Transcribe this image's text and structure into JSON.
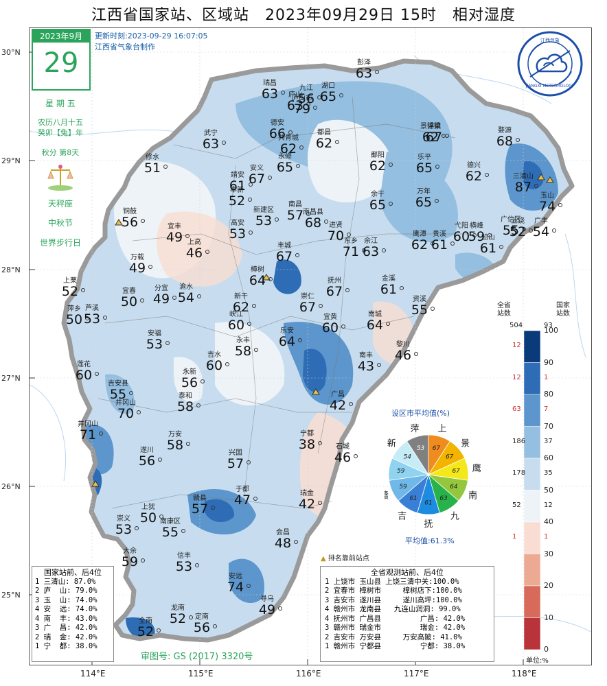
{
  "title": "江西省国家站、区域站　2023年09月29日 15时　相对湿度",
  "calendar": {
    "month": "2023年9月",
    "day": "29",
    "weekday": "星 期 五",
    "lunar1": "农历八月十五",
    "lunar2": "癸卯【兔】年",
    "term": "秋分 第8天",
    "zodiac": "天秤座",
    "festival1": "中秋节",
    "festival2": "世界步行日"
  },
  "update": {
    "line1": "更新时刻:2023-09-29 16:07:05",
    "line2": "江西省气象台制作"
  },
  "logo_text": "JIANGXI METEOROLOGY",
  "logo_top": "江西气象",
  "lat_labels": [
    "30°N",
    "29°N",
    "28°N",
    "27°N",
    "26°N",
    "25°N"
  ],
  "lon_labels": [
    "114°E",
    "115°E",
    "116°E",
    "117°E",
    "118°E"
  ],
  "stations": [
    {
      "name": "彭泽",
      "value": "63"
    },
    {
      "name": "瑞昌",
      "value": "63"
    },
    {
      "name": "九江",
      "value": "56"
    },
    {
      "name": "湖口",
      "value": "65"
    },
    {
      "name": "庐山",
      "value": "63"
    },
    {
      "name": "庐山市",
      "value": "79"
    },
    {
      "name": "德安",
      "value": "66"
    },
    {
      "name": "共青城",
      "value": "62"
    },
    {
      "name": "都昌",
      "value": "62"
    },
    {
      "name": "武宁",
      "value": "63"
    },
    {
      "name": "永修",
      "value": "65"
    },
    {
      "name": "浮梁",
      "value": "67"
    },
    {
      "name": "景德镇",
      "value": "62"
    },
    {
      "name": "婺源",
      "value": "68"
    },
    {
      "name": "修水",
      "value": "51"
    },
    {
      "name": "鄱阳",
      "value": "62"
    },
    {
      "name": "乐平",
      "value": "65"
    },
    {
      "name": "德兴",
      "value": "62"
    },
    {
      "name": "三清山",
      "value": "87"
    },
    {
      "name": "玉山",
      "value": "74"
    },
    {
      "name": "靖安",
      "value": "61"
    },
    {
      "name": "安义",
      "value": "67"
    },
    {
      "name": "奉新",
      "value": "52"
    },
    {
      "name": "新建区",
      "value": "53"
    },
    {
      "name": "南昌",
      "value": "57"
    },
    {
      "name": "南昌县",
      "value": "68"
    },
    {
      "name": "余干",
      "value": "65"
    },
    {
      "name": "万年",
      "value": "65"
    },
    {
      "name": "铜鼓",
      "value": "56"
    },
    {
      "name": "宜丰",
      "value": "49"
    },
    {
      "name": "高安",
      "value": "53"
    },
    {
      "name": "进贤",
      "value": "70"
    },
    {
      "name": "广信区",
      "value": "55"
    },
    {
      "name": "上饶",
      "value": "52"
    },
    {
      "name": "广丰",
      "value": "54"
    },
    {
      "name": "上高",
      "value": "46"
    },
    {
      "name": "丰城",
      "value": "67"
    },
    {
      "name": "东乡",
      "value": "71"
    },
    {
      "name": "余江",
      "value": "63"
    },
    {
      "name": "鹰潭",
      "value": "62"
    },
    {
      "name": "贵溪",
      "value": "61"
    },
    {
      "name": "弋阳",
      "value": "60"
    },
    {
      "name": "横峰",
      "value": "59"
    },
    {
      "name": "铅山",
      "value": "61"
    },
    {
      "name": "万载",
      "value": "49"
    },
    {
      "name": "樟树",
      "value": "64"
    },
    {
      "name": "抚州",
      "value": "67"
    },
    {
      "name": "金溪",
      "value": "61"
    },
    {
      "name": "上栗",
      "value": "52"
    },
    {
      "name": "宜春",
      "value": "50"
    },
    {
      "name": "分宜",
      "value": "49"
    },
    {
      "name": "渝水",
      "value": "54"
    },
    {
      "name": "新干",
      "value": "62"
    },
    {
      "name": "崇仁",
      "value": "67"
    },
    {
      "name": "资溪",
      "value": "55"
    },
    {
      "name": "萍乡",
      "value": "50"
    },
    {
      "name": "芦溪",
      "value": "53"
    },
    {
      "name": "峡江",
      "value": "60"
    },
    {
      "name": "宜黄",
      "value": "60"
    },
    {
      "name": "南城",
      "value": "64"
    },
    {
      "name": "乐安",
      "value": "64"
    },
    {
      "name": "安福",
      "value": "53"
    },
    {
      "name": "永丰",
      "value": "58"
    },
    {
      "name": "黎川",
      "value": "46"
    },
    {
      "name": "吉水",
      "value": "60"
    },
    {
      "name": "南丰",
      "value": "43"
    },
    {
      "name": "莲花",
      "value": "60"
    },
    {
      "name": "吉安县",
      "value": "55"
    },
    {
      "name": "永新",
      "value": "56"
    },
    {
      "name": "泰和",
      "value": "58"
    },
    {
      "name": "井冈山",
      "value": "70"
    },
    {
      "name": "广昌",
      "value": "42"
    },
    {
      "name": "井冈山2",
      "value": "71"
    },
    {
      "name": "万安",
      "value": "58"
    },
    {
      "name": "宁都",
      "value": "38"
    },
    {
      "name": "遂川",
      "value": "56"
    },
    {
      "name": "兴国",
      "value": "57"
    },
    {
      "name": "石城",
      "value": "46"
    },
    {
      "name": "赣县",
      "value": "57"
    },
    {
      "name": "于都",
      "value": "47"
    },
    {
      "name": "上犹",
      "value": "50"
    },
    {
      "name": "瑞金",
      "value": "42"
    },
    {
      "name": "南康区",
      "value": "55"
    },
    {
      "name": "崇义",
      "value": "53"
    },
    {
      "name": "会昌",
      "value": "48"
    },
    {
      "name": "大余",
      "value": "59"
    },
    {
      "name": "信丰",
      "value": "53"
    },
    {
      "name": "安远",
      "value": "74"
    },
    {
      "name": "寻乌",
      "value": "49"
    },
    {
      "name": "龙南",
      "value": "52"
    },
    {
      "name": "定南",
      "value": "56"
    },
    {
      "name": "全南",
      "value": "52"
    }
  ],
  "legend": {
    "header_left": "全省\n站数",
    "header_left_total": "504",
    "header_right": "国家\n站数",
    "header_right_total": "93",
    "levels": [
      "100",
      "90",
      "80",
      "70",
      "60",
      "50",
      "40",
      "30",
      "20",
      "10",
      "0"
    ],
    "left_counts": [
      "12",
      "12",
      "63",
      "186",
      "178",
      "52",
      "1",
      "",
      "",
      ""
    ],
    "right_counts": [
      "",
      "1",
      "7",
      "37",
      "35",
      "12",
      "1",
      "",
      "",
      ""
    ],
    "unit": "单位:%",
    "colors": [
      "#0a3a7a",
      "#2e6cb5",
      "#5c96cc",
      "#94bfe0",
      "#c7ddef",
      "#eef3f8",
      "#f9ddd2",
      "#ecaa92",
      "#d76a5a",
      "#b8333a",
      "#7d0f21"
    ]
  },
  "pie": {
    "title": "设区市平均值(%)",
    "cities": [
      "萍",
      "上",
      "景",
      "鹰",
      "南",
      "九",
      "抚",
      "吉",
      "赣",
      "宜",
      "新"
    ],
    "values": [
      "53",
      "67",
      "67",
      "67",
      "64",
      "63",
      "61",
      "61",
      "59",
      "59",
      "54"
    ],
    "avg": "平均值:61.3%",
    "colors": [
      "#808080",
      "#f08c1e",
      "#f3b400",
      "#f5e81a",
      "#94c73d",
      "#28b34a",
      "#1c8be0",
      "#3a7fd6",
      "#6fb8e8",
      "#8fd3f0",
      "#c6ecf8"
    ]
  },
  "marker_note": "排名靠前站点",
  "box1": {
    "title": "国家站前、后4位",
    "rows": [
      "1 三清山: 87.0%",
      "2 庐  山: 79.0%",
      "3 玉  山: 74.0%",
      "4 安  远: 74.0%",
      "4 南  丰: 43.0%",
      "3 广  昌: 42.0%",
      "2 瑞  金: 42.0%",
      "1 宁  都: 38.0%"
    ]
  },
  "box2": {
    "title": "全省观测站前、后4位",
    "rows": [
      "1 上饶市 玉山县 上饶三清中关:100.0%",
      "2 宜春市 樟树市     樟树店下:100.0%",
      "3 吉安市 遂川县     遂川高坪:100.0%",
      "4 赣州市 龙南县   九连山润洞: 99.0%",
      "4 抚州市 广昌县         广昌: 42.0%",
      "3 赣州市 瑞金市         瑞金: 42.0%",
      "2 吉安市 万安县     万安高陂: 41.0%",
      "1 赣州市 宁都县         宁都: 38.0%"
    ]
  },
  "approval": "审图号: GS (2017) 3320号"
}
